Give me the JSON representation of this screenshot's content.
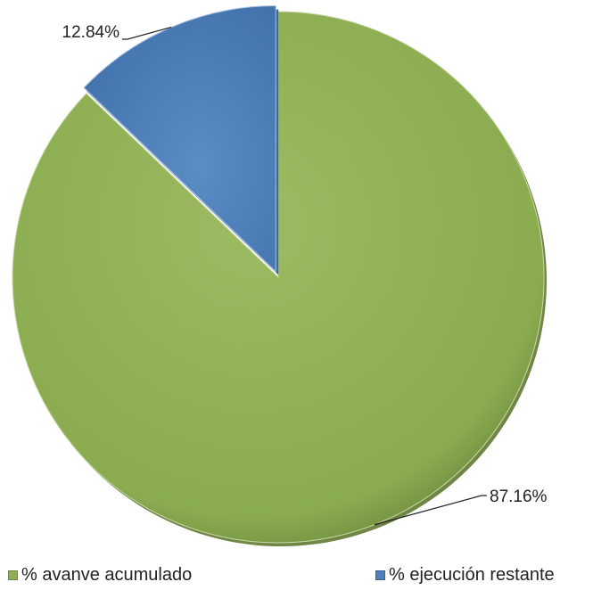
{
  "chart_data": {
    "type": "pie",
    "title": "",
    "slices": [
      {
        "label": "% avanve acumulado",
        "value": 87.16,
        "value_label": "87.16%",
        "color": "#8fae55"
      },
      {
        "label": "% ejecución restante",
        "value": 12.84,
        "value_label": "12.84%",
        "color": "#4f7fba"
      }
    ],
    "legend_position": "bottom"
  }
}
